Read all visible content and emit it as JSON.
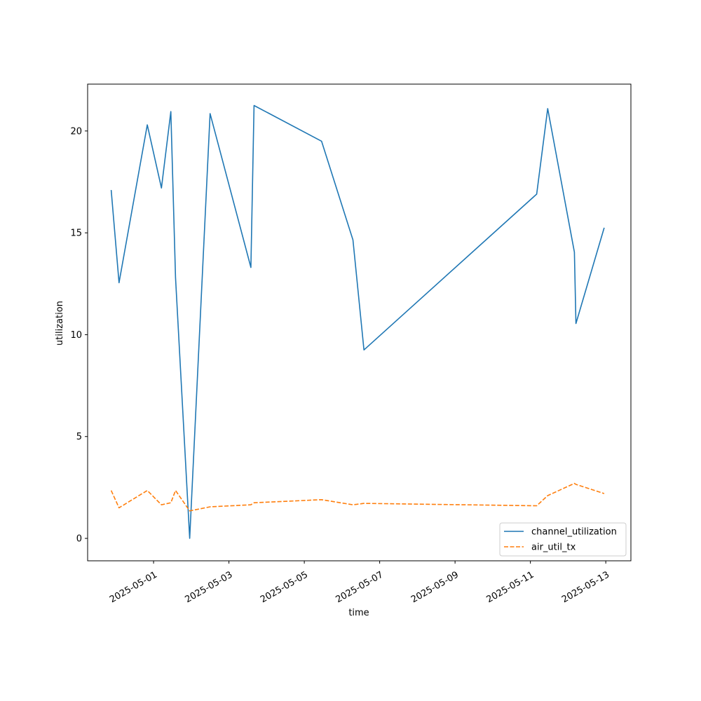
{
  "chart_data": {
    "type": "line",
    "xlabel": "time",
    "ylabel": "utilization",
    "x_ticks": [
      "2025-05-01",
      "2025-05-03",
      "2025-05-05",
      "2025-05-07",
      "2025-05-09",
      "2025-05-11",
      "2025-05-13"
    ],
    "y_ticks": [
      0,
      5,
      10,
      15,
      20
    ],
    "xlim": [
      "2025-04-29T06:00",
      "2025-05-13T16:00"
    ],
    "ylim": [
      -1.1,
      22.3
    ],
    "legend_position": "lower-right",
    "grid": false,
    "series": [
      {
        "name": "channel_utilization",
        "color": "#1f77b4",
        "dash": "solid",
        "points": [
          {
            "x": "2025-04-29T21:00",
            "y": 17.1
          },
          {
            "x": "2025-04-30T02:00",
            "y": 12.55
          },
          {
            "x": "2025-04-30T20:00",
            "y": 20.3
          },
          {
            "x": "2025-05-01T05:00",
            "y": 17.2
          },
          {
            "x": "2025-05-01T11:00",
            "y": 20.95
          },
          {
            "x": "2025-05-01T14:00",
            "y": 12.8
          },
          {
            "x": "2025-05-01T23:00",
            "y": 0.0
          },
          {
            "x": "2025-05-02T12:00",
            "y": 20.85
          },
          {
            "x": "2025-05-03T14:00",
            "y": 13.3
          },
          {
            "x": "2025-05-03T16:00",
            "y": 21.25
          },
          {
            "x": "2025-05-05T11:00",
            "y": 19.5
          },
          {
            "x": "2025-05-06T07:00",
            "y": 14.65
          },
          {
            "x": "2025-05-06T14:00",
            "y": 9.25
          },
          {
            "x": "2025-05-11T04:00",
            "y": 16.9
          },
          {
            "x": "2025-05-11T11:00",
            "y": 21.1
          },
          {
            "x": "2025-05-12T04:00",
            "y": 14.05
          },
          {
            "x": "2025-05-12T05:00",
            "y": 10.55
          },
          {
            "x": "2025-05-12T23:00",
            "y": 15.25
          }
        ]
      },
      {
        "name": "air_util_tx",
        "color": "#ff7f0e",
        "dash": "dashed",
        "points": [
          {
            "x": "2025-04-29T21:00",
            "y": 2.35
          },
          {
            "x": "2025-04-30T02:00",
            "y": 1.5
          },
          {
            "x": "2025-04-30T20:00",
            "y": 2.35
          },
          {
            "x": "2025-05-01T05:00",
            "y": 1.65
          },
          {
            "x": "2025-05-01T11:00",
            "y": 1.75
          },
          {
            "x": "2025-05-01T14:00",
            "y": 2.35
          },
          {
            "x": "2025-05-01T23:00",
            "y": 1.35
          },
          {
            "x": "2025-05-02T12:00",
            "y": 1.55
          },
          {
            "x": "2025-05-03T14:00",
            "y": 1.65
          },
          {
            "x": "2025-05-03T16:00",
            "y": 1.75
          },
          {
            "x": "2025-05-05T11:00",
            "y": 1.9
          },
          {
            "x": "2025-05-06T07:00",
            "y": 1.65
          },
          {
            "x": "2025-05-06T14:00",
            "y": 1.72
          },
          {
            "x": "2025-05-11T04:00",
            "y": 1.6
          },
          {
            "x": "2025-05-11T11:00",
            "y": 2.1
          },
          {
            "x": "2025-05-12T04:00",
            "y": 2.7
          },
          {
            "x": "2025-05-12T05:00",
            "y": 2.65
          },
          {
            "x": "2025-05-12T23:00",
            "y": 2.2
          }
        ]
      }
    ]
  }
}
